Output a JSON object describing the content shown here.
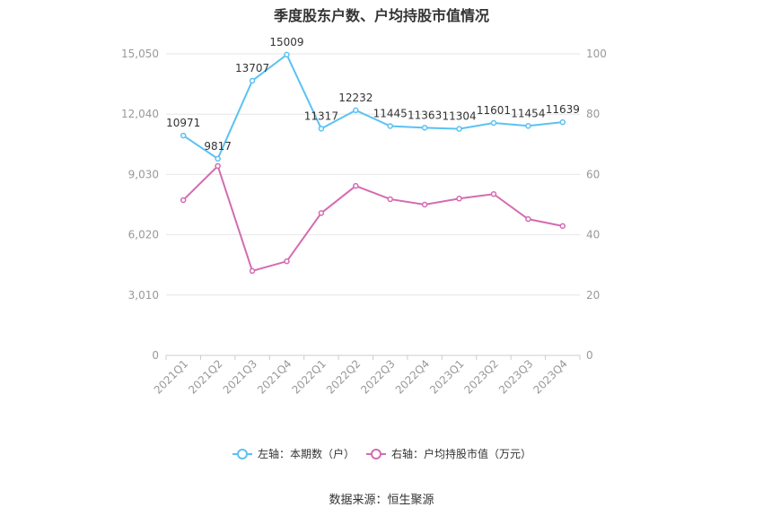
{
  "chart_data": {
    "type": "line",
    "title": "季度股东户数、户均持股市值情况",
    "categories": [
      "2021Q1",
      "2021Q2",
      "2021Q3",
      "2021Q4",
      "2022Q1",
      "2022Q2",
      "2022Q3",
      "2022Q4",
      "2023Q1",
      "2023Q2",
      "2023Q3",
      "2023Q4"
    ],
    "left_axis": {
      "ticks": [
        "0",
        "3,010",
        "6,020",
        "9,030",
        "12,040",
        "15,050"
      ],
      "ylim": [
        0,
        15050
      ]
    },
    "right_axis": {
      "ticks": [
        "0",
        "20",
        "40",
        "60",
        "80",
        "100"
      ],
      "ylim": [
        0,
        100
      ]
    },
    "series": [
      {
        "name": "左轴：本期数（户）",
        "axis": "left",
        "color": "#5bc2f2",
        "values": [
          10971,
          9817,
          13707,
          15009,
          11317,
          12232,
          11445,
          11363,
          11304,
          11601,
          11454,
          11639
        ],
        "labels": [
          "10971",
          "9817",
          "13707",
          "15009",
          "11317",
          "12232",
          "11445",
          "11363",
          "11304",
          "11601",
          "11454",
          "11639"
        ]
      },
      {
        "name": "右轴：户均持股市值（万元）",
        "axis": "right",
        "color": "#d46bb2",
        "values": [
          51.5,
          62.8,
          28.0,
          31.2,
          47.2,
          56.2,
          51.8,
          50.0,
          52.0,
          53.5,
          45.2,
          42.9
        ]
      }
    ],
    "grid": true,
    "legend_position": "bottom"
  },
  "footer": {
    "source": "数据来源：恒生聚源"
  }
}
